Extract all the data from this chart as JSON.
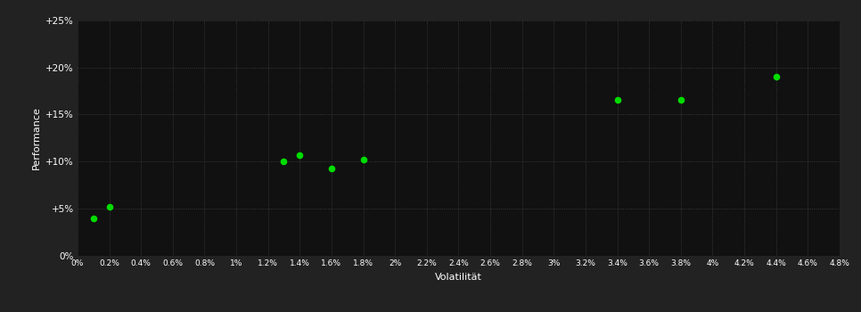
{
  "xlabel": "Volatilität",
  "ylabel": "Performance",
  "background_color": "#222222",
  "plot_bg_color": "#111111",
  "grid_color": "#444444",
  "text_color": "#ffffff",
  "point_color": "#00dd00",
  "points": [
    [
      0.001,
      0.04
    ],
    [
      0.002,
      0.052
    ],
    [
      0.013,
      0.1
    ],
    [
      0.014,
      0.107
    ],
    [
      0.016,
      0.093
    ],
    [
      0.018,
      0.102
    ],
    [
      0.034,
      0.166
    ],
    [
      0.038,
      0.166
    ],
    [
      0.044,
      0.19
    ]
  ],
  "xlim": [
    0,
    0.048
  ],
  "ylim": [
    0,
    0.25
  ],
  "xtick_labels": [
    "0%",
    "0.2%",
    "0.4%",
    "0.6%",
    "0.8%",
    "1%",
    "1.2%",
    "1.4%",
    "1.6%",
    "1.8%",
    "2%",
    "2.2%",
    "2.4%",
    "2.6%",
    "2.8%",
    "3%",
    "3.2%",
    "3.4%",
    "3.6%",
    "3.8%",
    "4%",
    "4.2%",
    "4.4%",
    "4.6%",
    "4.8%"
  ],
  "xtick_vals": [
    0,
    0.002,
    0.004,
    0.006,
    0.008,
    0.01,
    0.012,
    0.014,
    0.016,
    0.018,
    0.02,
    0.022,
    0.024,
    0.026,
    0.028,
    0.03,
    0.032,
    0.034,
    0.036,
    0.038,
    0.04,
    0.042,
    0.044,
    0.046,
    0.048
  ],
  "ytick_labels": [
    "0%",
    "+5%",
    "+10%",
    "+15%",
    "+20%",
    "+25%"
  ],
  "ytick_vals": [
    0,
    0.05,
    0.1,
    0.15,
    0.2,
    0.25
  ],
  "point_size": 20
}
